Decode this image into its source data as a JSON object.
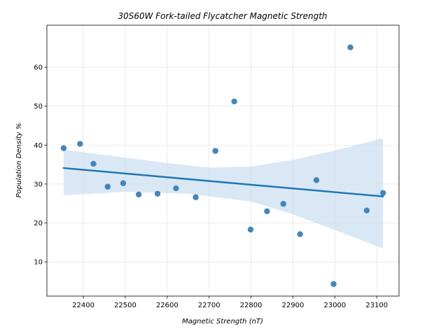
{
  "chart_data": {
    "type": "scatter",
    "title": "30S60W Fork-tailed Flycatcher Magnetic Strength",
    "xlabel": "Magnetic Strength (nT)",
    "ylabel": "Population Density %",
    "xlim": [
      22313,
      23153
    ],
    "ylim": [
      1.2,
      70.8
    ],
    "xticks": [
      22400,
      22500,
      22600,
      22700,
      22800,
      22900,
      23000,
      23100
    ],
    "yticks": [
      10,
      20,
      30,
      40,
      50,
      60
    ],
    "grid": true,
    "colors": {
      "points": "#3a80b8",
      "line": "#1f77b4",
      "band": "#c6dbef"
    },
    "points": [
      {
        "x": 22353,
        "y": 39.2
      },
      {
        "x": 22392,
        "y": 40.3
      },
      {
        "x": 22424,
        "y": 35.2
      },
      {
        "x": 22458,
        "y": 29.3
      },
      {
        "x": 22495,
        "y": 30.2
      },
      {
        "x": 22532,
        "y": 27.3
      },
      {
        "x": 22577,
        "y": 27.5
      },
      {
        "x": 22621,
        "y": 28.9
      },
      {
        "x": 22668,
        "y": 26.6
      },
      {
        "x": 22715,
        "y": 38.5
      },
      {
        "x": 22760,
        "y": 51.2
      },
      {
        "x": 22799,
        "y": 18.3
      },
      {
        "x": 22838,
        "y": 23.0
      },
      {
        "x": 22877,
        "y": 24.9
      },
      {
        "x": 22917,
        "y": 17.1
      },
      {
        "x": 22956,
        "y": 31.0
      },
      {
        "x": 22997,
        "y": 4.3
      },
      {
        "x": 23037,
        "y": 65.1
      },
      {
        "x": 23076,
        "y": 23.2
      },
      {
        "x": 23115,
        "y": 27.7
      }
    ],
    "regression": {
      "line": [
        [
          22353,
          34.1
        ],
        [
          23115,
          26.8
        ]
      ],
      "ci_upper": [
        [
          22353,
          38.8
        ],
        [
          22600,
          35.4
        ],
        [
          22700,
          34.2
        ],
        [
          22800,
          34.5
        ],
        [
          22900,
          36.2
        ],
        [
          23000,
          38.6
        ],
        [
          23115,
          41.8
        ]
      ],
      "ci_lower": [
        [
          22353,
          27.1
        ],
        [
          22500,
          28.0
        ],
        [
          22650,
          27.5
        ],
        [
          22800,
          25.5
        ],
        [
          22900,
          22.2
        ],
        [
          23000,
          18.2
        ],
        [
          23115,
          13.4
        ]
      ]
    }
  }
}
